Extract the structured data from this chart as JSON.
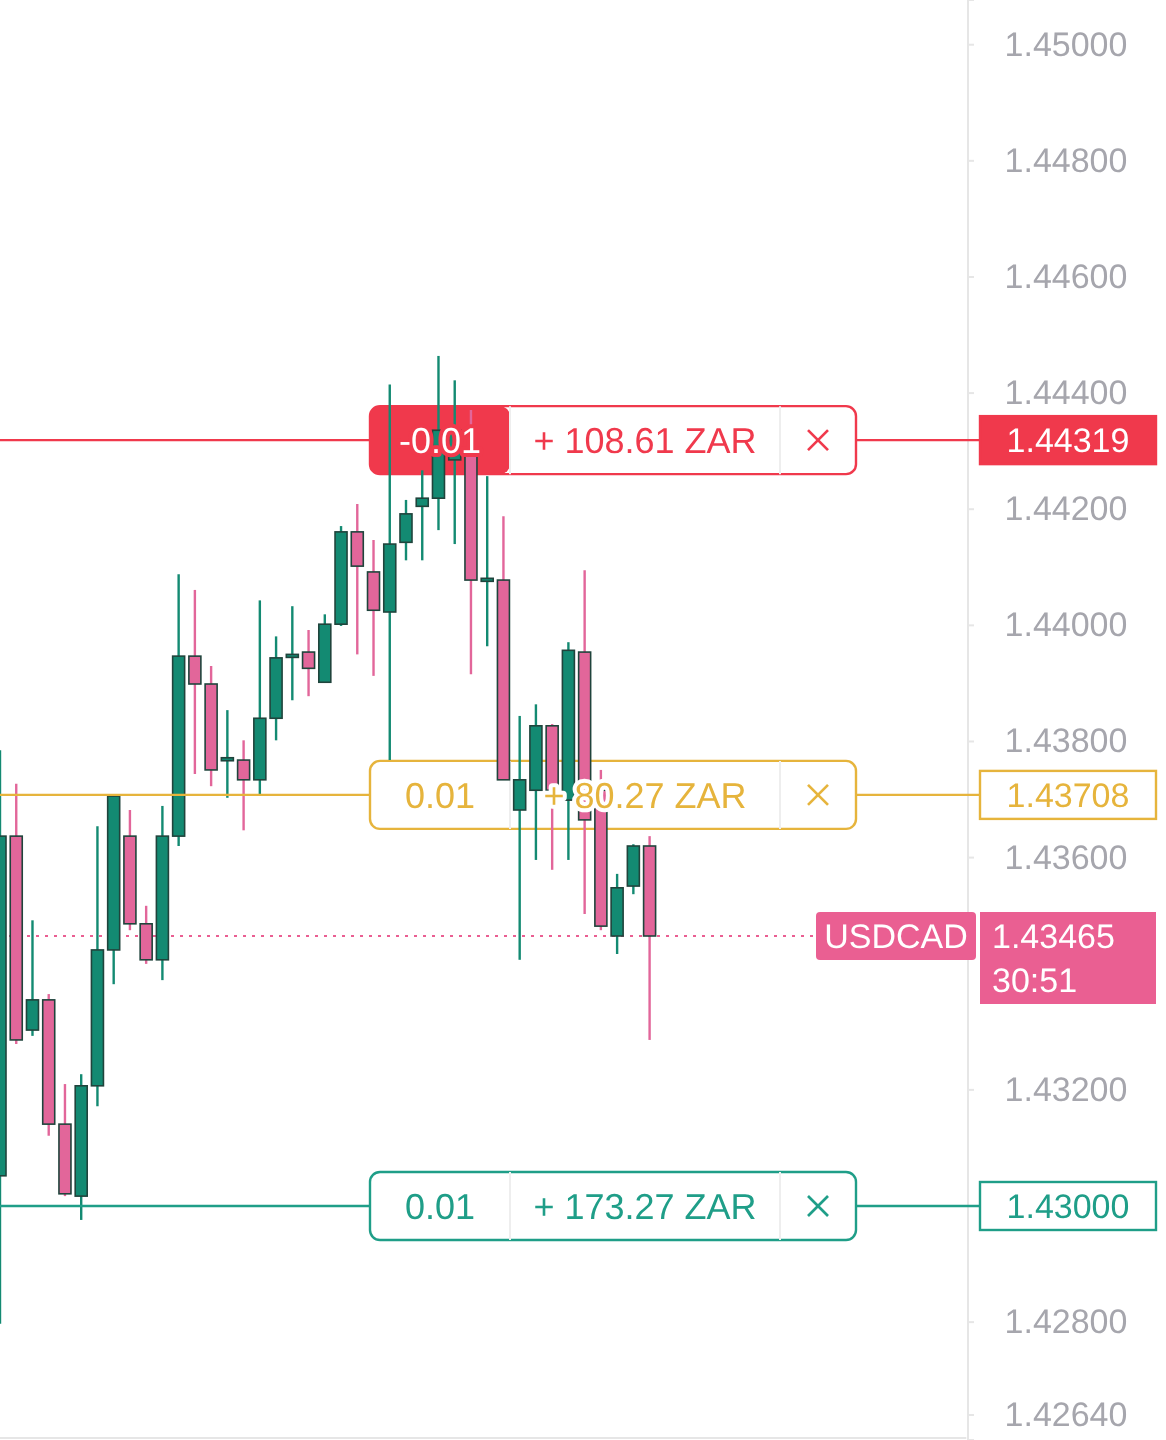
{
  "chart_data": {
    "type": "candlestick",
    "categories": [
      null,
      null,
      null,
      null,
      null,
      null,
      null,
      null,
      null,
      null,
      null,
      null,
      null,
      null,
      null,
      null,
      null,
      null,
      null,
      null,
      null,
      null,
      null,
      null,
      null,
      null,
      null,
      null,
      null,
      null,
      null,
      null,
      null,
      null,
      null,
      null,
      null,
      null,
      null,
      null,
      null,
      null,
      null,
      null,
      null,
      null,
      null,
      null,
      null,
      null,
      null,
      null,
      null,
      null,
      null,
      null,
      null,
      null,
      null,
      null
    ],
    "ohlc": [
      [
        1.43052,
        1.43785,
        1.42797,
        1.43637
      ],
      [
        1.43637,
        1.43727,
        1.43279,
        1.43286
      ],
      [
        1.43303,
        1.43492,
        1.43293,
        1.43355
      ],
      [
        1.43355,
        1.43365,
        1.43121,
        1.43141
      ],
      [
        1.43141,
        1.4321,
        1.43017,
        1.43021
      ],
      [
        1.43017,
        1.43227,
        1.42976,
        1.43207
      ],
      [
        1.43207,
        1.43654,
        1.43172,
        1.43441
      ],
      [
        1.43441,
        1.43706,
        1.43382,
        1.43706
      ],
      [
        1.43637,
        1.43682,
        1.43475,
        1.43486
      ],
      [
        1.43486,
        1.43517,
        1.43417,
        1.43424
      ],
      [
        1.43424,
        1.43689,
        1.43389,
        1.43637
      ],
      [
        1.43637,
        1.44088,
        1.4362,
        1.43947
      ],
      [
        1.43947,
        1.44061,
        1.43744,
        1.43899
      ],
      [
        1.43899,
        1.4393,
        1.43723,
        1.43751
      ],
      [
        1.43768,
        1.43854,
        1.43703,
        1.43772
      ],
      [
        1.43768,
        1.43802,
        1.43647,
        1.43734
      ],
      [
        1.43734,
        1.44043,
        1.43709,
        1.4384
      ],
      [
        1.4384,
        1.43981,
        1.43802,
        1.43944
      ],
      [
        1.43946,
        1.44033,
        1.43871,
        1.4395
      ],
      [
        1.43954,
        1.43992,
        1.43878,
        1.43926
      ],
      [
        1.43902,
        1.44019,
        1.43902,
        1.44002
      ],
      [
        1.44002,
        1.44171,
        1.43999,
        1.44161
      ],
      [
        1.44161,
        1.44209,
        1.4395,
        1.44102
      ],
      [
        1.44092,
        1.44147,
        1.43913,
        1.44026
      ],
      [
        1.44023,
        1.44415,
        1.43768,
        1.4414
      ],
      [
        1.44143,
        1.44216,
        1.44112,
        1.44192
      ],
      [
        1.44205,
        1.44267,
        1.44112,
        1.44219
      ],
      [
        1.44219,
        1.44464,
        1.44164,
        1.44336
      ],
      [
        1.44285,
        1.44422,
        1.4414,
        1.44336
      ],
      [
        1.44302,
        1.44371,
        1.43916,
        1.44078
      ],
      [
        1.44078,
        1.44257,
        1.43964,
        1.44081
      ],
      [
        1.44078,
        1.44188,
        1.43734,
        1.43734
      ],
      [
        1.43682,
        1.43844,
        1.43424,
        1.43734
      ],
      [
        1.43716,
        1.43864,
        1.43596,
        1.43827
      ],
      [
        1.43827,
        1.4383,
        1.43579,
        1.43716
      ],
      [
        1.43699,
        1.43971,
        1.43596,
        1.43957
      ],
      [
        1.43954,
        1.44095,
        1.43503,
        1.43665
      ],
      [
        1.43716,
        1.43751,
        1.43475,
        1.43482
      ],
      [
        1.43465,
        1.43572,
        1.43434,
        1.43548
      ],
      [
        1.43551,
        1.43623,
        1.43537,
        1.4362
      ],
      [
        1.4362,
        1.43637,
        1.43286,
        1.43465
      ],
      null,
      null,
      null,
      null,
      null,
      null,
      null,
      null,
      null,
      null,
      null,
      null,
      null,
      null,
      null,
      null,
      null,
      null,
      null
    ],
    "ylim": [
      1.42597,
      1.45077
    ],
    "yticks": [
      {
        "value": 1.45,
        "label": "1.45000"
      },
      {
        "value": 1.448,
        "label": "1.44800"
      },
      {
        "value": 1.446,
        "label": "1.44600"
      },
      {
        "value": 1.444,
        "label": "1.44400"
      },
      {
        "value": 1.442,
        "label": "1.44200"
      },
      {
        "value": 1.44,
        "label": "1.44000"
      },
      {
        "value": 1.438,
        "label": "1.43800"
      },
      {
        "value": 1.436,
        "label": "1.43600"
      },
      {
        "value": 1.432,
        "label": "1.43200"
      },
      {
        "value": 1.428,
        "label": "1.42800"
      },
      {
        "value": 1.4264,
        "label": "1.42640"
      }
    ],
    "tick_labels": "y",
    "grid": false,
    "ref_lines": [
      {
        "axis": "y",
        "value": 1.44319,
        "label": "1.44319",
        "color": "#f0394c",
        "line_style": "solid"
      },
      {
        "axis": "y",
        "value": 1.43708,
        "label": "1.43708",
        "color": "#e6b43c",
        "line_style": "solid"
      },
      {
        "axis": "y",
        "value": 1.43,
        "label": "1.43000",
        "color": "#1f9e88",
        "line_style": "solid"
      },
      {
        "axis": "y",
        "value": 1.43465,
        "label": "1.43465",
        "color": "#ea5f92",
        "line_style": "dotted"
      }
    ],
    "colors": [
      "#138a72",
      "#e2669a",
      "#138a72",
      "#e2669a",
      "#e2669a",
      "#138a72",
      "#138a72",
      "#138a72",
      "#e2669a",
      "#e2669a",
      "#138a72",
      "#138a72",
      "#e2669a",
      "#e2669a",
      "#138a72",
      "#e2669a",
      "#138a72",
      "#138a72",
      "#138a72",
      "#e2669a",
      "#138a72",
      "#138a72",
      "#e2669a",
      "#e2669a",
      "#138a72",
      "#138a72",
      "#138a72",
      "#138a72",
      "#138a72",
      "#e2669a",
      "#138a72",
      "#e2669a",
      "#138a72",
      "#138a72",
      "#e2669a",
      "#138a72",
      "#e2669a",
      "#e2669a",
      "#138a72",
      "#138a72",
      "#e2669a",
      null,
      null,
      null,
      null,
      null,
      null,
      null,
      null,
      null,
      null,
      null,
      null,
      null,
      null,
      null,
      null,
      null,
      null,
      null
    ],
    "annotations": [
      "-0.01",
      "+ 108.61 ZAR",
      "0.01",
      "+ 80.27 ZAR",
      "0.01",
      "+ 173.27 ZAR",
      "USDCAD",
      "30:51"
    ]
  }
}
